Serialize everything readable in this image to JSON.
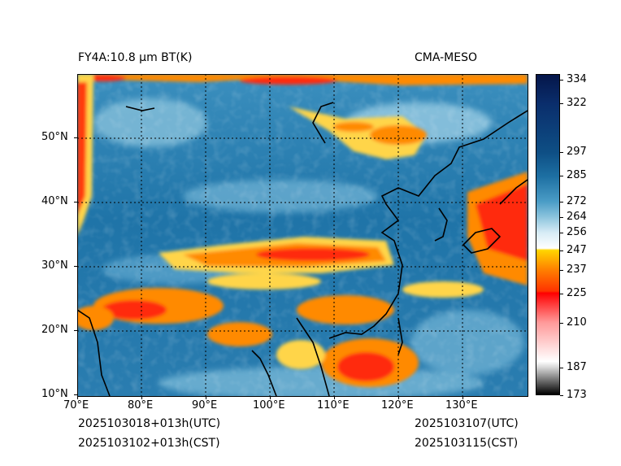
{
  "header": {
    "left_title": "FY4A:10.8 µm BT(K)",
    "right_title": "CMA-MESO"
  },
  "footer": {
    "left_utc": "2025103018+013h(UTC)",
    "left_cst": "2025103102+013h(CST)",
    "right_utc": "2025103107(UTC)",
    "right_cst": "2025103115(CST)"
  },
  "axes": {
    "lat_labels": [
      "10°N",
      "20°N",
      "30°N",
      "40°N",
      "50°N"
    ],
    "lon_labels": [
      "70°E",
      "80°E",
      "90°E",
      "100°E",
      "110°E",
      "120°E",
      "130°E"
    ],
    "lat_values": [
      10,
      20,
      30,
      40,
      50
    ],
    "lon_values": [
      70,
      80,
      90,
      100,
      110,
      120,
      130
    ],
    "lat_range": [
      10,
      60
    ],
    "lon_range": [
      70,
      140
    ]
  },
  "colorbar": {
    "range": [
      173,
      337
    ],
    "ticks": [
      334,
      322,
      297,
      285,
      272,
      264,
      256,
      247,
      237,
      225,
      210,
      187,
      173
    ],
    "stops": [
      {
        "value": 173,
        "color": "#000000"
      },
      {
        "value": 187,
        "color": "#d9d9d9"
      },
      {
        "value": 190,
        "color": "#ffffff"
      },
      {
        "value": 210,
        "color": "#ff9999"
      },
      {
        "value": 225,
        "color": "#ff0000"
      },
      {
        "value": 226,
        "color": "#ff3300"
      },
      {
        "value": 237,
        "color": "#ff8000"
      },
      {
        "value": 247,
        "color": "#ffd500"
      },
      {
        "value": 248,
        "color": "#ffffff"
      },
      {
        "value": 256,
        "color": "#d7ecf6"
      },
      {
        "value": 264,
        "color": "#8cc4dd"
      },
      {
        "value": 272,
        "color": "#4a9cc6"
      },
      {
        "value": 285,
        "color": "#1d6fa2"
      },
      {
        "value": 297,
        "color": "#0e4f85"
      },
      {
        "value": 322,
        "color": "#0a2e6c"
      },
      {
        "value": 337,
        "color": "#05164a"
      }
    ]
  },
  "colors": {
    "sea_background": "#1f6f9f",
    "cold_cloud_red": "#ff2a10",
    "cloud_orange": "#ff8a00",
    "cloud_yellow": "#ffd54a",
    "coast": "#000000"
  }
}
